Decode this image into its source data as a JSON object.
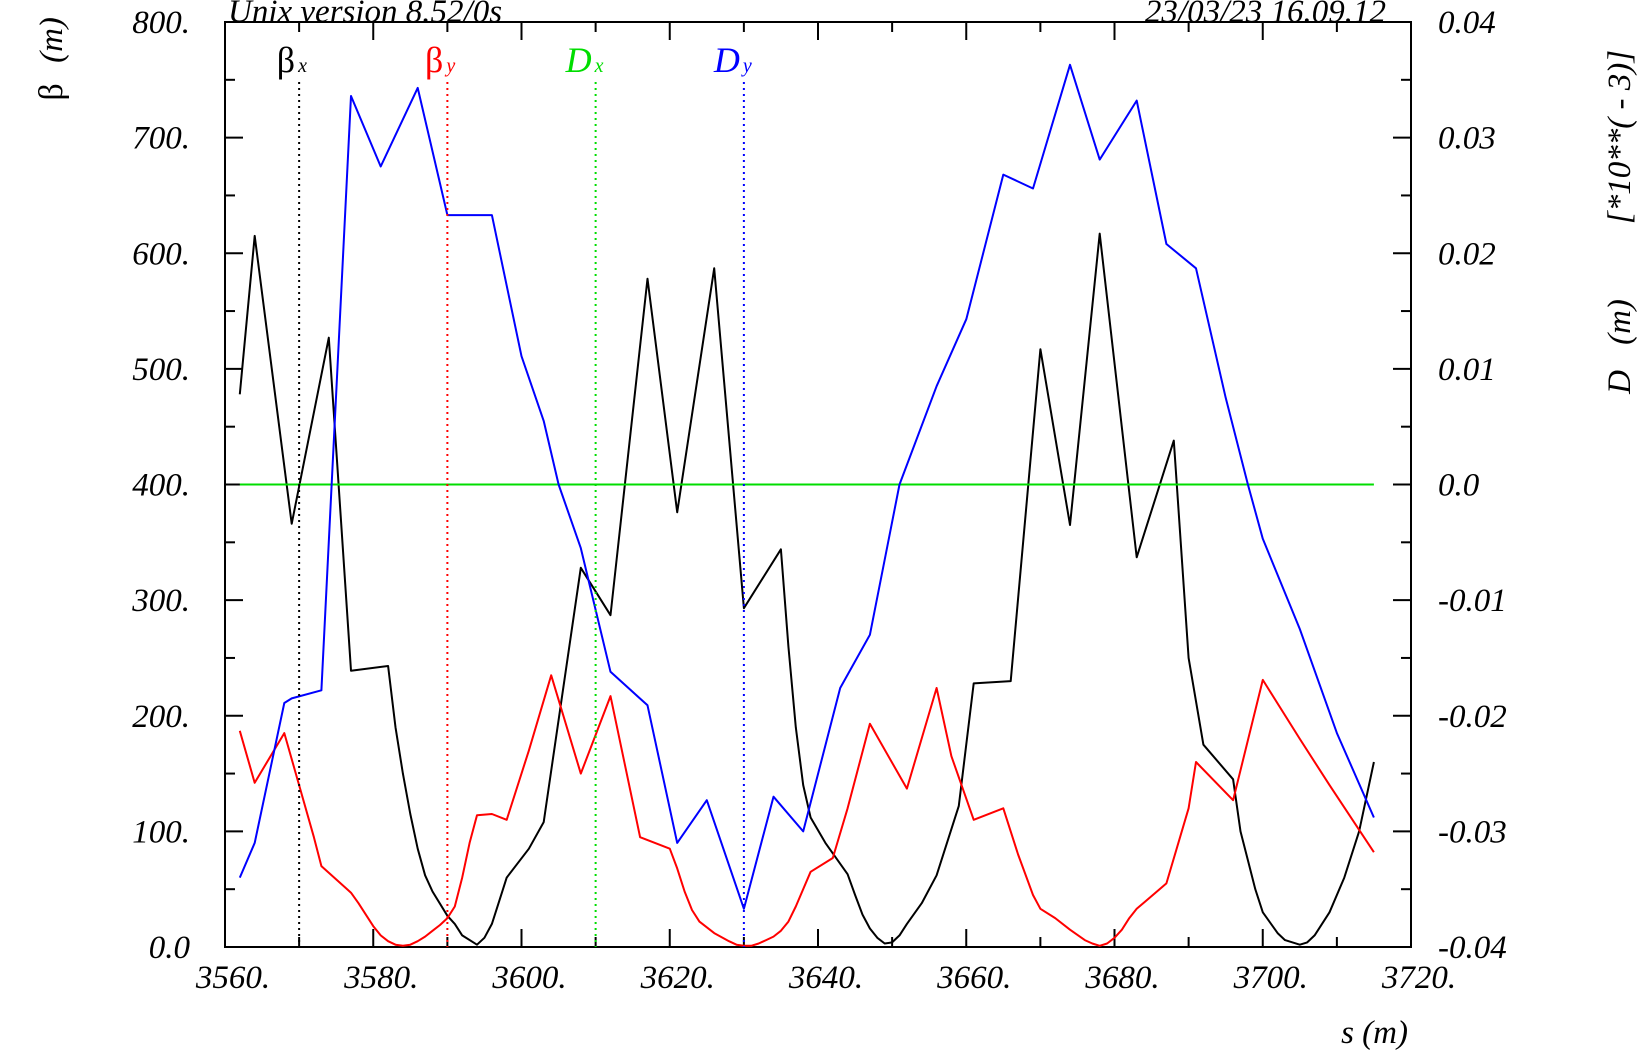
{
  "header": {
    "left": "Unix version 8.52/0s",
    "right": "23/03/23  16.09.12"
  },
  "chart_data": {
    "type": "line",
    "xlabel": "s (m)",
    "ylabel_left": {
      "symbol": "β",
      "unit": "(m)"
    },
    "ylabel_right": {
      "name": "D",
      "unit": "(m)",
      "scale": "[*10**( - 3)]"
    },
    "xlim": [
      3560,
      3720
    ],
    "ylim_left": [
      0,
      800
    ],
    "ylim_right": [
      -0.04,
      0.04
    ],
    "x_ticks": [
      "3560.",
      "3580.",
      "3600.",
      "3620.",
      "3640.",
      "3660.",
      "3680.",
      "3700.",
      "3720."
    ],
    "y_ticks_left": [
      "0.0",
      "100.",
      "200.",
      "300.",
      "400.",
      "500.",
      "600.",
      "700.",
      "800."
    ],
    "y_ticks_right": [
      "-0.04",
      "-0.03",
      "-0.02",
      "-0.01",
      "0.0",
      "0.01",
      "0.02",
      "0.03",
      "0.04"
    ],
    "colors": {
      "beta_x": "#000000",
      "beta_y": "#ff0000",
      "D_x": "#00dd00",
      "D_y": "#0000ff"
    },
    "legend": [
      {
        "key": "beta_x",
        "main": "β",
        "sub": "x",
        "s": 3570.0
      },
      {
        "key": "beta_y",
        "main": "β",
        "sub": "y",
        "s": 3590.0
      },
      {
        "key": "D_x",
        "main": "D",
        "sub": "x",
        "s": 3610.0
      },
      {
        "key": "D_y",
        "main": "D",
        "sub": "y",
        "s": 3630.0
      }
    ],
    "series": [
      {
        "key": "beta_x",
        "axis": "left",
        "points": [
          [
            3562.0,
            478
          ],
          [
            3564.0,
            615
          ],
          [
            3569.0,
            366
          ],
          [
            3574.0,
            527
          ],
          [
            3577.0,
            239
          ],
          [
            3582.0,
            243
          ],
          [
            3583.0,
            190
          ],
          [
            3584.0,
            150
          ],
          [
            3585.0,
            115
          ],
          [
            3586.0,
            85
          ],
          [
            3587.0,
            62
          ],
          [
            3588.0,
            48
          ],
          [
            3590.0,
            27
          ],
          [
            3591.0,
            20
          ],
          [
            3592.0,
            10
          ],
          [
            3594.0,
            2
          ],
          [
            3595.0,
            8
          ],
          [
            3596.0,
            20
          ],
          [
            3597.0,
            40
          ],
          [
            3598.0,
            60
          ],
          [
            3601.0,
            85
          ],
          [
            3603.0,
            108
          ],
          [
            3608.0,
            328
          ],
          [
            3612.0,
            287
          ],
          [
            3617.0,
            578
          ],
          [
            3621.0,
            376
          ],
          [
            3626.0,
            587
          ],
          [
            3630.0,
            293
          ],
          [
            3635.0,
            344
          ],
          [
            3636.0,
            260
          ],
          [
            3637.0,
            190
          ],
          [
            3638.0,
            140
          ],
          [
            3639.0,
            112
          ],
          [
            3641.0,
            90
          ],
          [
            3644.0,
            63
          ],
          [
            3645.0,
            45
          ],
          [
            3646.0,
            28
          ],
          [
            3647.0,
            16
          ],
          [
            3648.0,
            8
          ],
          [
            3649.0,
            3
          ],
          [
            3650.0,
            4
          ],
          [
            3651.0,
            10
          ],
          [
            3652.0,
            20
          ],
          [
            3654.0,
            38
          ],
          [
            3656.0,
            62
          ],
          [
            3659.0,
            122
          ],
          [
            3661.0,
            228
          ],
          [
            3666.0,
            230
          ],
          [
            3670.0,
            517
          ],
          [
            3674.0,
            365
          ],
          [
            3678.0,
            617
          ],
          [
            3683.0,
            337
          ],
          [
            3688.0,
            438
          ],
          [
            3690.0,
            250
          ],
          [
            3692.0,
            175
          ],
          [
            3696.0,
            145
          ],
          [
            3697.0,
            100
          ],
          [
            3698.0,
            75
          ],
          [
            3699.0,
            50
          ],
          [
            3700.0,
            30
          ],
          [
            3702.0,
            12
          ],
          [
            3703.0,
            6
          ],
          [
            3705.0,
            2
          ],
          [
            3706.0,
            4
          ],
          [
            3707.0,
            10
          ],
          [
            3709.0,
            30
          ],
          [
            3711.0,
            60
          ],
          [
            3713.0,
            100
          ],
          [
            3715.0,
            160
          ]
        ]
      },
      {
        "key": "beta_y",
        "axis": "left",
        "points": [
          [
            3562.0,
            187
          ],
          [
            3564.0,
            142
          ],
          [
            3568.0,
            185
          ],
          [
            3570.0,
            140
          ],
          [
            3572.0,
            95
          ],
          [
            3573.0,
            70
          ],
          [
            3577.0,
            47
          ],
          [
            3578.0,
            38
          ],
          [
            3579.0,
            28
          ],
          [
            3580.0,
            18
          ],
          [
            3581.0,
            10
          ],
          [
            3582.0,
            5
          ],
          [
            3583.0,
            2
          ],
          [
            3584.0,
            1
          ],
          [
            3585.0,
            2
          ],
          [
            3586.0,
            5
          ],
          [
            3587.0,
            9
          ],
          [
            3588.0,
            14
          ],
          [
            3589.0,
            19
          ],
          [
            3590.0,
            25
          ],
          [
            3591.0,
            35
          ],
          [
            3592.0,
            60
          ],
          [
            3593.0,
            90
          ],
          [
            3594.0,
            114
          ],
          [
            3596.0,
            115
          ],
          [
            3598.0,
            110
          ],
          [
            3601.0,
            170
          ],
          [
            3604.0,
            235
          ],
          [
            3608.0,
            150
          ],
          [
            3612.0,
            217
          ],
          [
            3616.0,
            95
          ],
          [
            3620.0,
            85
          ],
          [
            3621.0,
            68
          ],
          [
            3622.0,
            48
          ],
          [
            3623.0,
            32
          ],
          [
            3624.0,
            22
          ],
          [
            3626.0,
            12
          ],
          [
            3628.0,
            5
          ],
          [
            3629.0,
            2
          ],
          [
            3630.0,
            1
          ],
          [
            3631.0,
            1
          ],
          [
            3632.0,
            3
          ],
          [
            3633.0,
            6
          ],
          [
            3634.0,
            9
          ],
          [
            3635.0,
            14
          ],
          [
            3636.0,
            22
          ],
          [
            3637.0,
            35
          ],
          [
            3639.0,
            65
          ],
          [
            3642.0,
            77
          ],
          [
            3644.0,
            120
          ],
          [
            3647.0,
            193
          ],
          [
            3652.0,
            137
          ],
          [
            3656.0,
            224
          ],
          [
            3658.0,
            165
          ],
          [
            3661.0,
            110
          ],
          [
            3665.0,
            120
          ],
          [
            3667.0,
            80
          ],
          [
            3669.0,
            45
          ],
          [
            3670.0,
            33
          ],
          [
            3672.0,
            25
          ],
          [
            3674.0,
            15
          ],
          [
            3676.0,
            6
          ],
          [
            3677.0,
            3
          ],
          [
            3678.0,
            1
          ],
          [
            3679.0,
            3
          ],
          [
            3680.0,
            8
          ],
          [
            3681.0,
            15
          ],
          [
            3682.0,
            25
          ],
          [
            3683.0,
            33
          ],
          [
            3687.0,
            55
          ],
          [
            3690.0,
            120
          ],
          [
            3691.0,
            160
          ],
          [
            3696.0,
            127
          ],
          [
            3700.0,
            231
          ],
          [
            3705.0,
            180
          ],
          [
            3709.0,
            140
          ],
          [
            3715.0,
            82
          ]
        ]
      },
      {
        "key": "D_x",
        "axis": "right",
        "points": [
          [
            3562.0,
            0.0
          ],
          [
            3715.0,
            0.0
          ]
        ]
      },
      {
        "key": "D_y",
        "axis": "right",
        "points": [
          [
            3562.0,
            -0.034
          ],
          [
            3564.0,
            -0.031
          ],
          [
            3568.0,
            -0.0189
          ],
          [
            3569.0,
            -0.0185
          ],
          [
            3573.0,
            -0.0178
          ],
          [
            3577.0,
            0.0336
          ],
          [
            3581.0,
            0.0275
          ],
          [
            3586.0,
            0.0343
          ],
          [
            3590.0,
            0.0233
          ],
          [
            3596.0,
            0.0233
          ],
          [
            3600.0,
            0.0111
          ],
          [
            3603.0,
            0.0055
          ],
          [
            3605.0,
            0.0
          ],
          [
            3608.0,
            -0.0055
          ],
          [
            3612.0,
            -0.0162
          ],
          [
            3617.0,
            -0.0191
          ],
          [
            3621.0,
            -0.031
          ],
          [
            3625.0,
            -0.0273
          ],
          [
            3630.0,
            -0.0367
          ],
          [
            3634.0,
            -0.027
          ],
          [
            3638.0,
            -0.03
          ],
          [
            3643.0,
            -0.0176
          ],
          [
            3647.0,
            -0.013
          ],
          [
            3651.0,
            0.0
          ],
          [
            3656.0,
            0.0085
          ],
          [
            3660.0,
            0.0143
          ],
          [
            3665.0,
            0.0268
          ],
          [
            3669.0,
            0.0256
          ],
          [
            3674.0,
            0.0363
          ],
          [
            3678.0,
            0.0281
          ],
          [
            3683.0,
            0.0332
          ],
          [
            3687.0,
            0.0208
          ],
          [
            3691.0,
            0.0187
          ],
          [
            3695.0,
            0.0075
          ],
          [
            3698.0,
            0.0
          ],
          [
            3700.0,
            -0.0047
          ],
          [
            3705.0,
            -0.0125
          ],
          [
            3710.0,
            -0.0215
          ],
          [
            3715.0,
            -0.0288
          ]
        ]
      }
    ]
  }
}
